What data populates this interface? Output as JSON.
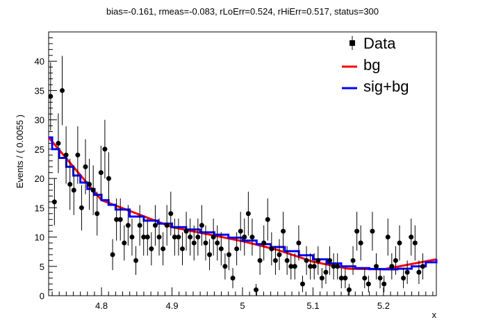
{
  "chart_data": {
    "type": "scatter",
    "title": "bias=-0.161, rmeas=-0.083, rLoErr=0.524, rHiErr=0.517, status=300",
    "xlabel": "x",
    "ylabel": "Events / ( 0.0055 )",
    "xlim": [
      4.725,
      5.275
    ],
    "ylim": [
      0,
      45
    ],
    "x_ticks": [
      4.8,
      4.9,
      5.0,
      5.1,
      5.2
    ],
    "x_tick_labels": [
      "4.8",
      "4.9",
      "5",
      "5.1",
      "5.2"
    ],
    "y_ticks": [
      0,
      5,
      10,
      15,
      20,
      25,
      30,
      35,
      40
    ],
    "y_tick_labels": [
      "0",
      "5",
      "10",
      "15",
      "20",
      "25",
      "30",
      "35",
      "40"
    ],
    "grid": false,
    "legend_position": "top-right",
    "legend": [
      {
        "label": "Data",
        "color": "#000000",
        "style": "marker"
      },
      {
        "label": "bg",
        "color": "#ff0000",
        "style": "line"
      },
      {
        "label": "sig+bg",
        "color": "#0000ff",
        "style": "line"
      }
    ],
    "series": [
      {
        "name": "Data",
        "kind": "points-with-errors",
        "color": "#000000",
        "x_start": 4.72775,
        "x_step": 0.0055,
        "values": [
          34,
          16,
          26,
          35,
          24,
          19,
          18,
          24,
          15,
          22,
          19,
          18,
          14,
          21,
          25,
          20,
          7,
          13,
          13,
          9,
          12,
          10,
          6,
          12,
          10,
          10,
          8,
          12,
          10,
          8,
          12,
          14,
          10,
          10,
          8,
          11,
          10,
          9,
          10,
          12,
          9,
          7,
          10,
          9,
          8,
          5,
          7,
          3,
          8,
          11,
          10,
          14,
          10,
          1,
          6,
          9,
          13,
          8,
          6,
          7,
          11,
          6,
          5,
          5,
          9,
          2,
          6,
          5,
          5,
          6,
          3,
          4,
          6,
          5,
          5,
          3,
          3,
          1,
          6,
          11,
          9,
          3,
          2,
          11,
          5,
          3,
          2,
          10,
          5,
          6,
          9,
          3,
          4,
          10,
          9,
          4,
          5
        ]
      },
      {
        "name": "bg",
        "kind": "line",
        "color": "#ff0000",
        "x": [
          4.725,
          4.8,
          4.9,
          5.0,
          5.05,
          5.1,
          5.15,
          5.2,
          5.275
        ],
        "y": [
          27,
          16.3,
          11.7,
          9.3,
          7.8,
          5.8,
          4.6,
          4.5,
          6.2
        ]
      },
      {
        "name": "sig+bg",
        "kind": "step",
        "color": "#0000ff",
        "x": [
          4.725,
          4.73,
          4.74,
          4.75,
          4.76,
          4.77,
          4.78,
          4.79,
          4.8,
          4.81,
          4.82,
          4.84,
          4.86,
          4.88,
          4.9,
          4.92,
          4.94,
          4.96,
          4.98,
          5.0,
          5.02,
          5.04,
          5.06,
          5.08,
          5.1,
          5.12,
          5.14,
          5.16,
          5.18,
          5.2,
          5.22,
          5.24,
          5.26,
          5.275
        ],
        "y": [
          27,
          25,
          23.5,
          22,
          20.5,
          19.3,
          18.2,
          17.2,
          16.3,
          15.5,
          14.7,
          13.5,
          12.8,
          12.3,
          11.7,
          11.3,
          10.8,
          10.4,
          9.9,
          9.4,
          8.8,
          8.3,
          7.6,
          6.9,
          6.2,
          5.5,
          5.0,
          4.7,
          4.55,
          4.5,
          4.6,
          5.0,
          5.7,
          6.2
        ]
      }
    ]
  }
}
